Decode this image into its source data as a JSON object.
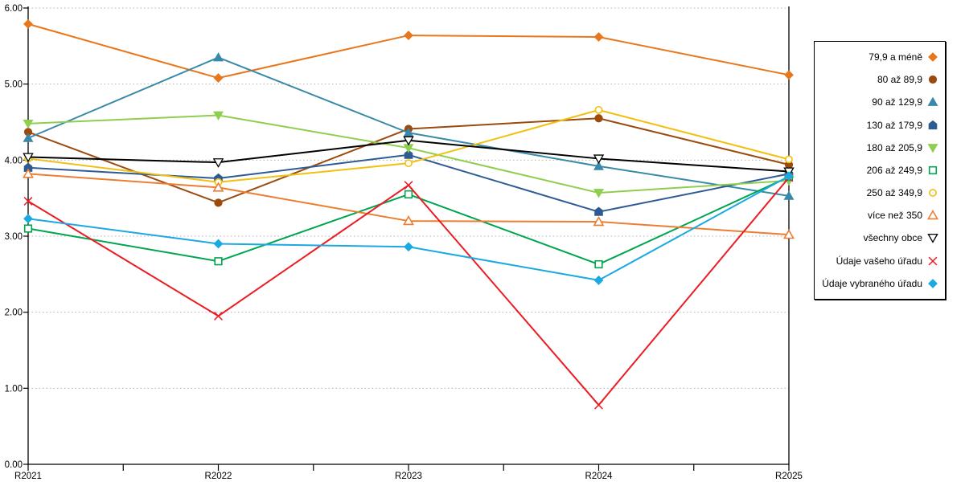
{
  "chart_data": {
    "type": "line",
    "title": "",
    "xlabel": "",
    "ylabel": "",
    "categories": [
      "R2021",
      "R2022",
      "R2023",
      "R2024",
      "R2025"
    ],
    "ylim": [
      0,
      6
    ],
    "y_tick_step": 1,
    "y_tick_labels": [
      "0.00",
      "1.00",
      "2.00",
      "3.00",
      "4.00",
      "5.00",
      "6.00"
    ],
    "grid": "horizontal-dotted",
    "gridline_color": "#b3b3b3",
    "axis_color": "#000000",
    "legend_position": "right-outside",
    "series": [
      {
        "name": "79,9 a méně",
        "color": "#E8771C",
        "shape": "diamond",
        "filled": true,
        "values": [
          5.79,
          5.08,
          5.64,
          5.62,
          5.12
        ]
      },
      {
        "name": "80 až 89,9",
        "color": "#9C4B0F",
        "shape": "circle",
        "filled": true,
        "values": [
          4.37,
          3.44,
          4.41,
          4.55,
          3.94
        ]
      },
      {
        "name": "90 až 129,9",
        "color": "#3989A8",
        "shape": "triangle-up",
        "filled": true,
        "values": [
          4.29,
          5.35,
          4.36,
          3.92,
          3.53
        ]
      },
      {
        "name": "130 až 179,9",
        "color": "#2F5B93",
        "shape": "pentagon",
        "filled": true,
        "values": [
          3.9,
          3.76,
          4.07,
          3.32,
          3.82
        ]
      },
      {
        "name": "180 až 205,9",
        "color": "#8FCE4E",
        "shape": "triangle-down",
        "filled": true,
        "values": [
          4.48,
          4.59,
          4.16,
          3.57,
          3.73
        ]
      },
      {
        "name": "206 až 249,9",
        "color": "#00A550",
        "shape": "square",
        "filled": false,
        "values": [
          3.1,
          2.67,
          3.55,
          2.63,
          3.78
        ]
      },
      {
        "name": "250 až 349,9",
        "color": "#F2C011",
        "shape": "circle",
        "filled": false,
        "values": [
          4.02,
          3.71,
          3.96,
          4.66,
          4.01
        ]
      },
      {
        "name": "více než 350",
        "color": "#ED7D31",
        "shape": "triangle-up",
        "filled": false,
        "values": [
          3.82,
          3.64,
          3.2,
          3.19,
          3.02
        ]
      },
      {
        "name": "všechny obce",
        "color": "#000000",
        "shape": "triangle-down",
        "filled": false,
        "values": [
          4.04,
          3.97,
          4.26,
          4.02,
          3.85
        ]
      },
      {
        "name": "Údaje vašeho úřadu",
        "color": "#EB1C24",
        "shape": "x",
        "filled": false,
        "values": [
          3.46,
          1.95,
          3.67,
          0.78,
          3.77
        ]
      },
      {
        "name": "Údaje vybraného úřadu",
        "color": "#1BA9E2",
        "shape": "diamond",
        "filled": true,
        "values": [
          3.23,
          2.9,
          2.86,
          2.42,
          3.79
        ]
      }
    ]
  }
}
